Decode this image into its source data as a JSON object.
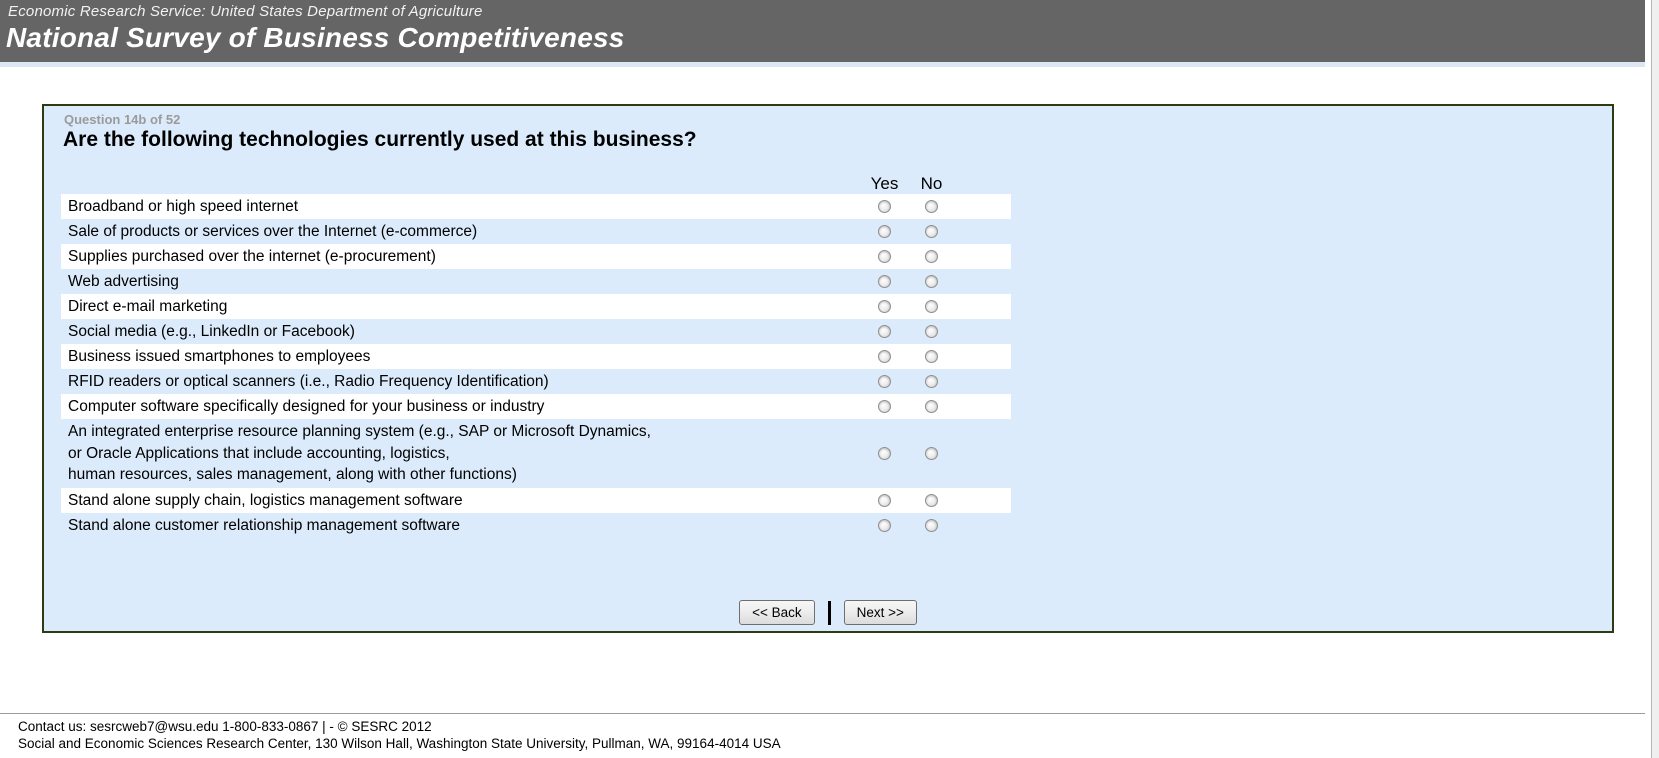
{
  "header": {
    "agency_line": "Economic Research Service: United States Department of Agriculture",
    "survey_title": "National Survey of Business Competitiveness"
  },
  "question": {
    "number_label": "Question 14b of 52",
    "title": "Are the following technologies currently used at this business?",
    "columns": {
      "yes": "Yes",
      "no": "No"
    },
    "items": [
      {
        "label": "Broadband or high speed internet"
      },
      {
        "label": "Sale of products or services over the Internet (e-commerce)"
      },
      {
        "label": "Supplies purchased over the internet (e-procurement)"
      },
      {
        "label": "Web advertising"
      },
      {
        "label": "Direct e-mail marketing"
      },
      {
        "label": "Social media (e.g., LinkedIn or Facebook)"
      },
      {
        "label": "Business issued smartphones to employees"
      },
      {
        "label": "RFID readers or optical scanners (i.e., Radio Frequency Identification)"
      },
      {
        "label": "Computer software specifically designed for your business or industry"
      },
      {
        "label": "An integrated enterprise resource planning system (e.g., SAP or Microsoft Dynamics,\nor Oracle Applications that include accounting, logistics,\nhuman resources, sales management, along with other functions)"
      },
      {
        "label": "Stand alone supply chain, logistics management software"
      },
      {
        "label": "Stand alone customer relationship management software"
      }
    ]
  },
  "buttons": {
    "back": "<< Back",
    "next": "Next >>"
  },
  "footer": {
    "line1": "Contact us: sesrcweb7@wsu.edu 1-800-833-0867 | - © SESRC 2012",
    "line2": "Social and Economic Sciences Research Center, 130 Wilson Hall, Washington State University, Pullman, WA, 99164-4014 USA"
  },
  "colors": {
    "banner_bg": "#656565",
    "banner_strip": "#dce7f6",
    "panel_bg": "#dcebfb",
    "panel_border": "#2e3b11",
    "row_white": "#ffffff",
    "question_number_gray": "#9a9a9a"
  }
}
